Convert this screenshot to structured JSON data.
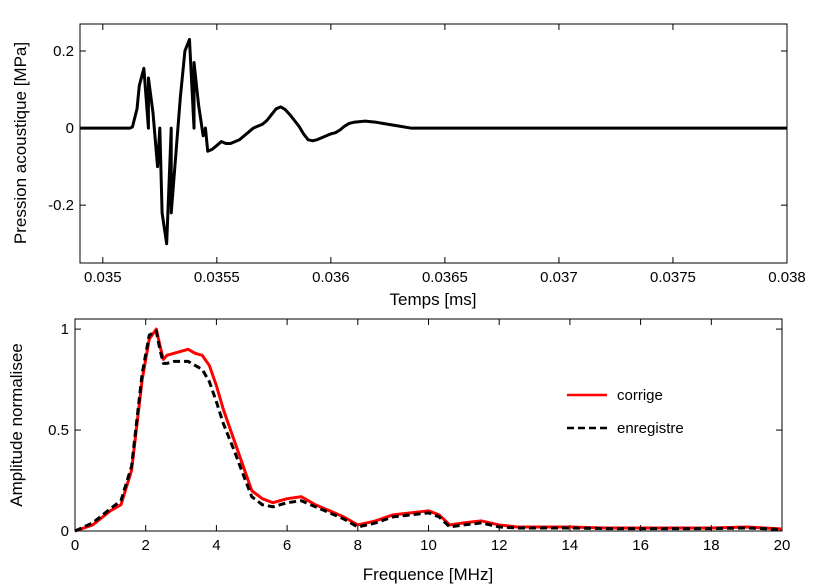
{
  "chart_data": [
    {
      "type": "line",
      "xlabel": "Temps [ms]",
      "ylabel": "Pression acoustique [MPa]",
      "xlim": [
        0.0349,
        0.038
      ],
      "ylim": [
        -0.35,
        0.27
      ],
      "xticks": [
        0.035,
        0.0355,
        0.036,
        0.0365,
        0.037,
        0.0375,
        0.038
      ],
      "xtick_labels": [
        "0.035",
        "0.0355",
        "0.036",
        "0.0365",
        "0.037",
        "0.0375",
        "0.038"
      ],
      "yticks": [
        0.2,
        0,
        -0.2
      ],
      "ytick_labels": [
        "0.2",
        "0",
        "-0.2"
      ],
      "grid": false,
      "series": [
        {
          "color": "#000000",
          "style": "solid",
          "x": [
            0.0349,
            0.03505,
            0.0352,
            0.03525,
            0.0353,
            0.0354,
            0.03545,
            0.03505,
            0.0351,
            0.03512,
            0.03513,
            0.03515,
            0.03516,
            0.03518,
            0.0352,
            0.03522,
            0.03524,
            0.03526,
            0.03528,
            0.0353,
            0.03532,
            0.03534,
            0.03536,
            0.03538,
            0.0354,
            0.03542,
            0.03544,
            0.03546,
            0.03548,
            0.0355,
            0.03552,
            0.03554,
            0.03556,
            0.03558,
            0.0356,
            0.03562,
            0.03564,
            0.03566,
            0.03568,
            0.0357,
            0.03572,
            0.03574,
            0.03576,
            0.03578,
            0.0358,
            0.03582,
            0.03584,
            0.03586,
            0.03588,
            0.0359,
            0.03592,
            0.03594,
            0.03596,
            0.03598,
            0.036,
            0.03602,
            0.03604,
            0.03606,
            0.03608,
            0.0361,
            0.03615,
            0.0362,
            0.03625,
            0.0363,
            0.03635,
            0.0364,
            0.03645,
            0.0365,
            0.03655,
            0.0366,
            0.0367,
            0.0368,
            0.0369,
            0.037,
            0.0371,
            0.0372,
            0.0373,
            0.0374,
            0.0375,
            0.0376,
            0.0377,
            0.0378,
            0.0379,
            0.038
          ],
          "y": [
            0.0,
            0.0,
            0.0,
            0.0,
            0.0,
            0.0,
            0.0,
            0.0,
            0.0,
            0.0,
            0.003,
            0.05,
            0.11,
            0.155,
            0.13,
            0.04,
            -0.1,
            -0.22,
            -0.3,
            -0.22,
            -0.07,
            0.08,
            0.2,
            0.23,
            0.17,
            0.06,
            -0.02,
            -0.06,
            -0.055,
            -0.045,
            -0.035,
            -0.04,
            -0.04,
            -0.035,
            -0.03,
            -0.02,
            -0.01,
            0.0,
            0.005,
            0.01,
            0.02,
            0.035,
            0.05,
            0.055,
            0.048,
            0.035,
            0.02,
            0.005,
            -0.015,
            -0.03,
            -0.033,
            -0.03,
            -0.025,
            -0.02,
            -0.015,
            -0.012,
            -0.005,
            0.005,
            0.012,
            0.015,
            0.018,
            0.015,
            0.01,
            0.005,
            0.0,
            0.0,
            0.0,
            0.0,
            0.0,
            0.0,
            0.0,
            0.0,
            0.0,
            0.0,
            0.0,
            0.0,
            0.0,
            0.0,
            0.0,
            0.0,
            0.0,
            0.0,
            0.0,
            0.0
          ]
        }
      ]
    },
    {
      "type": "line",
      "xlabel": "Frequence [MHz]",
      "ylabel": "Amplitude normalisee",
      "xlim": [
        0,
        20
      ],
      "ylim": [
        0,
        1.05
      ],
      "xticks": [
        0,
        2,
        4,
        6,
        8,
        10,
        12,
        14,
        16,
        18,
        20
      ],
      "xtick_labels": [
        "0",
        "2",
        "4",
        "6",
        "8",
        "10",
        "12",
        "14",
        "16",
        "18",
        "20"
      ],
      "yticks": [
        0,
        0.5,
        1
      ],
      "ytick_labels": [
        "0",
        "0.5",
        "1"
      ],
      "grid": false,
      "legend_position": "right",
      "series": [
        {
          "name": "corrige",
          "color": "#ff0000",
          "style": "solid",
          "x": [
            0,
            0.5,
            1.0,
            1.3,
            1.6,
            1.9,
            2.1,
            2.3,
            2.4,
            2.5,
            2.6,
            2.8,
            3.0,
            3.2,
            3.4,
            3.6,
            3.8,
            4.0,
            4.2,
            4.5,
            4.8,
            5.0,
            5.3,
            5.6,
            6.0,
            6.4,
            6.8,
            7.2,
            7.6,
            8.0,
            8.5,
            9.0,
            9.5,
            10.0,
            10.3,
            10.6,
            11.0,
            11.5,
            12.0,
            12.5,
            13.0,
            14.0,
            15.0,
            16.0,
            17.0,
            18.0,
            19.0,
            20.0
          ],
          "y": [
            0.0,
            0.03,
            0.1,
            0.13,
            0.3,
            0.75,
            0.95,
            1.0,
            0.92,
            0.85,
            0.87,
            0.88,
            0.89,
            0.9,
            0.88,
            0.87,
            0.82,
            0.72,
            0.6,
            0.45,
            0.3,
            0.2,
            0.16,
            0.14,
            0.16,
            0.17,
            0.13,
            0.1,
            0.07,
            0.03,
            0.05,
            0.08,
            0.09,
            0.1,
            0.08,
            0.03,
            0.04,
            0.05,
            0.03,
            0.02,
            0.02,
            0.02,
            0.015,
            0.015,
            0.015,
            0.015,
            0.02,
            0.01
          ]
        },
        {
          "name": "enregistre",
          "color": "#000000",
          "style": "dashed",
          "x": [
            0,
            0.5,
            1.0,
            1.3,
            1.6,
            1.9,
            2.1,
            2.3,
            2.4,
            2.5,
            2.6,
            2.8,
            3.0,
            3.2,
            3.4,
            3.6,
            3.8,
            4.0,
            4.2,
            4.5,
            4.8,
            5.0,
            5.3,
            5.6,
            6.0,
            6.4,
            6.8,
            7.2,
            7.6,
            8.0,
            8.5,
            9.0,
            9.5,
            10.0,
            10.3,
            10.6,
            11.0,
            11.5,
            12.0,
            12.5,
            13.0,
            14.0,
            15.0,
            16.0,
            17.0,
            18.0,
            19.0,
            20.0
          ],
          "y": [
            0.0,
            0.04,
            0.11,
            0.15,
            0.32,
            0.78,
            0.97,
            0.99,
            0.9,
            0.83,
            0.83,
            0.84,
            0.84,
            0.84,
            0.82,
            0.8,
            0.74,
            0.64,
            0.53,
            0.4,
            0.26,
            0.17,
            0.13,
            0.12,
            0.14,
            0.15,
            0.12,
            0.09,
            0.06,
            0.02,
            0.04,
            0.07,
            0.08,
            0.09,
            0.07,
            0.02,
            0.03,
            0.04,
            0.02,
            0.015,
            0.015,
            0.015,
            0.012,
            0.012,
            0.012,
            0.012,
            0.015,
            0.008
          ]
        }
      ]
    }
  ]
}
